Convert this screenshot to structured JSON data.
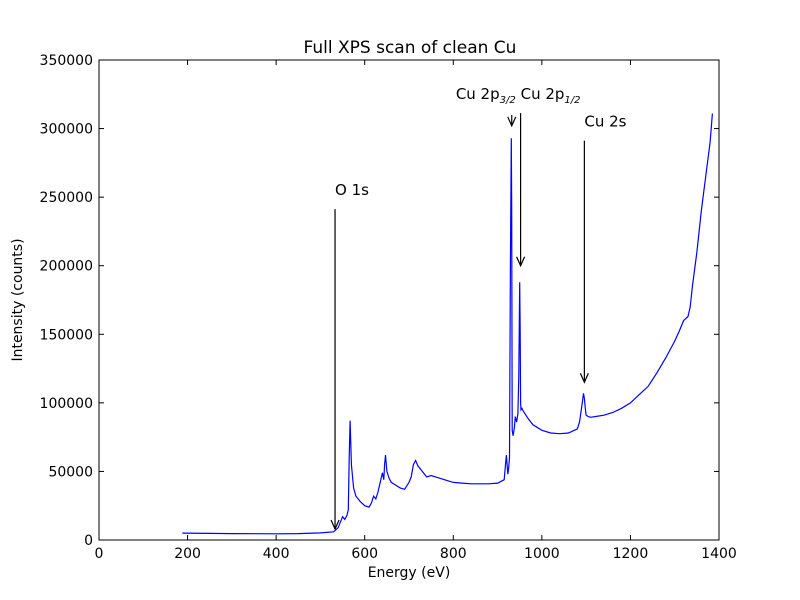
{
  "chart_data": {
    "type": "line",
    "title": "Full XPS scan of clean Cu",
    "xlabel": "Energy (eV)",
    "ylabel": "Intensity (counts)",
    "xlim": [
      0,
      1400
    ],
    "ylim": [
      0,
      350000
    ],
    "grid": false,
    "x_ticks": [
      0,
      200,
      400,
      600,
      800,
      1000,
      1200,
      1400
    ],
    "x_tick_labels": [
      "0",
      "200",
      "400",
      "600",
      "800",
      "1000",
      "1200",
      "1400"
    ],
    "y_ticks": [
      0,
      50000,
      100000,
      150000,
      200000,
      250000,
      300000,
      350000
    ],
    "y_tick_labels": [
      "0",
      "50000",
      "100000",
      "150000",
      "200000",
      "250000",
      "300000",
      "350000"
    ],
    "series": [
      {
        "color": "#0000ff",
        "x": [
          188,
          250,
          300,
          350,
          400,
          450,
          500,
          530,
          540,
          545,
          550,
          555,
          560,
          563,
          565,
          567,
          570,
          575,
          580,
          590,
          600,
          610,
          615,
          620,
          625,
          630,
          635,
          640,
          643,
          645,
          647,
          650,
          655,
          660,
          670,
          680,
          690,
          700,
          705,
          710,
          715,
          720,
          730,
          740,
          750,
          760,
          770,
          780,
          800,
          820,
          840,
          860,
          880,
          900,
          915,
          918,
          920,
          923,
          925,
          927,
          929,
          931,
          932,
          933,
          935,
          938,
          940,
          943,
          946,
          948,
          950,
          951,
          952,
          953,
          955,
          958,
          962,
          970,
          980,
          1000,
          1020,
          1040,
          1060,
          1080,
          1085,
          1090,
          1094,
          1096,
          1098,
          1100,
          1105,
          1110,
          1120,
          1140,
          1160,
          1180,
          1200,
          1220,
          1240,
          1260,
          1280,
          1300,
          1310,
          1320,
          1330,
          1335,
          1340,
          1350,
          1360,
          1370,
          1380,
          1385
        ],
        "y": [
          5000,
          4800,
          4700,
          4600,
          4500,
          4700,
          5200,
          6000,
          9000,
          13000,
          17000,
          15000,
          18000,
          22000,
          60000,
          87000,
          55000,
          38000,
          32000,
          28000,
          25000,
          24000,
          27000,
          32000,
          30000,
          35000,
          42000,
          49000,
          44000,
          55000,
          62000,
          50000,
          45000,
          42000,
          40000,
          38000,
          37000,
          42000,
          46000,
          55000,
          58000,
          54000,
          50000,
          46000,
          47000,
          46000,
          45000,
          44000,
          42000,
          41500,
          41000,
          41000,
          41000,
          41500,
          44000,
          55000,
          62000,
          48000,
          52000,
          60000,
          200000,
          293000,
          240000,
          80000,
          76000,
          82000,
          90000,
          86000,
          92000,
          120000,
          188000,
          150000,
          100000,
          95000,
          96000,
          94000,
          92000,
          88000,
          84000,
          80000,
          78000,
          77500,
          78000,
          81000,
          86000,
          97000,
          107000,
          103000,
          96000,
          91000,
          90000,
          89500,
          90000,
          91000,
          93000,
          96000,
          100000,
          106000,
          112000,
          122000,
          133000,
          145000,
          152000,
          160000,
          163000,
          170000,
          185000,
          210000,
          240000,
          265000,
          290000,
          311000
        ]
      }
    ],
    "annotations": [
      {
        "label": "O 1s",
        "x": 533,
        "y_tip": 8000,
        "y_text": 250000
      },
      {
        "label": "Cu 2p",
        "sub": "3/2",
        "x": 932,
        "y_tip": 302000,
        "y_text": 320000
      },
      {
        "label": "Cu 2p",
        "sub": "1/2",
        "x": 952,
        "y_tip": 200000,
        "y_text": 320000
      },
      {
        "label": "Cu 2s",
        "x": 1096,
        "y_tip": 115000,
        "y_text": 300000
      }
    ]
  }
}
